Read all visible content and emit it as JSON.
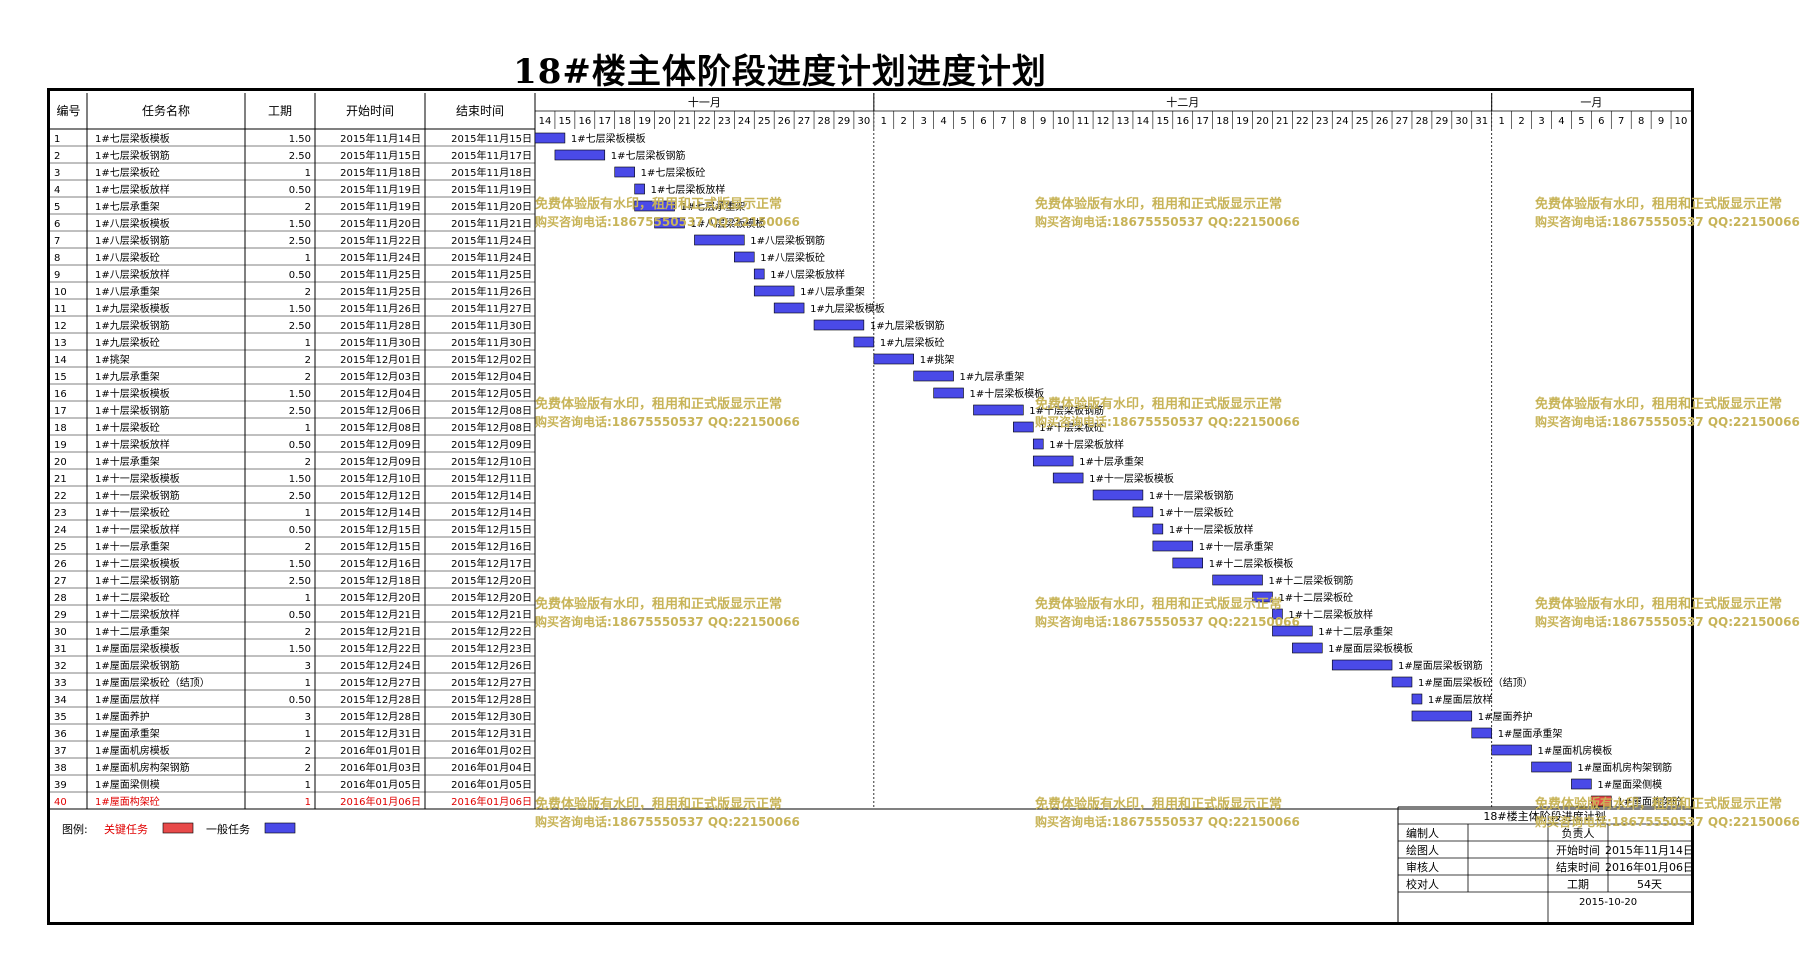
{
  "title": "18#楼主体阶段进度计划进度计划",
  "headers": {
    "no": "编号",
    "name": "任务名称",
    "dur": "工期",
    "start": "开始时间",
    "end": "结束时间"
  },
  "months": [
    {
      "label": "十一月",
      "days": [
        "14",
        "15",
        "16",
        "17",
        "18",
        "19",
        "20",
        "21",
        "22",
        "23",
        "24",
        "25",
        "26",
        "27",
        "28",
        "29",
        "30"
      ]
    },
    {
      "label": "十二月",
      "days": [
        "1",
        "2",
        "3",
        "4",
        "5",
        "6",
        "7",
        "8",
        "9",
        "10",
        "11",
        "12",
        "13",
        "14",
        "15",
        "16",
        "17",
        "18",
        "19",
        "20",
        "21",
        "22",
        "23",
        "24",
        "25",
        "26",
        "27",
        "28",
        "29",
        "30",
        "31"
      ]
    },
    {
      "label": "一月",
      "days": [
        "1",
        "2",
        "3",
        "4",
        "5",
        "6",
        "7",
        "8",
        "9",
        "10"
      ]
    }
  ],
  "legend": {
    "prefix": "图例:",
    "critical": "关键任务",
    "normal": "一般任务"
  },
  "colors": {
    "normal": "#4a4ae8",
    "critical": "#e84a4a",
    "critical_text": "#e00000",
    "watermark": "#c8b458",
    "border": "#000000"
  },
  "watermark": {
    "line1": "免费体验版有水印，租用和正式版显示正常",
    "line2": "购买咨询电话:18675550537 QQ:22150066"
  },
  "info": {
    "title": "18#楼主体阶段进度计划",
    "rows": [
      {
        "label": "编制人",
        "value": "",
        "label2": "负责人",
        "value2": ""
      },
      {
        "label": "绘图人",
        "value": "",
        "label2": "开始时间",
        "value2": "2015年11月14日"
      },
      {
        "label": "审核人",
        "value": "",
        "label2": "结束时间",
        "value2": "2016年01月06日"
      },
      {
        "label": "校对人",
        "value": "",
        "label2": "工期",
        "value2": "54天"
      }
    ],
    "date": "2015-10-20"
  },
  "chart_data": {
    "type": "gantt",
    "axis_start": "2015-11-14",
    "axis_end": "2016-01-10",
    "tasks": [
      {
        "no": "1",
        "name": "1#七层梁板模板",
        "dur": "1.50",
        "start": "2015年11月14日",
        "end": "2015年11月15日",
        "s": "2015-11-14",
        "d": 1.5,
        "critical": false
      },
      {
        "no": "2",
        "name": "1#七层梁板钢筋",
        "dur": "2.50",
        "start": "2015年11月15日",
        "end": "2015年11月17日",
        "s": "2015-11-15",
        "d": 2.5,
        "critical": false
      },
      {
        "no": "3",
        "name": "1#七层梁板砼",
        "dur": "1",
        "start": "2015年11月18日",
        "end": "2015年11月18日",
        "s": "2015-11-18",
        "d": 1,
        "critical": false
      },
      {
        "no": "4",
        "name": "1#七层梁板放样",
        "dur": "0.50",
        "start": "2015年11月19日",
        "end": "2015年11月19日",
        "s": "2015-11-19",
        "d": 0.5,
        "critical": false
      },
      {
        "no": "5",
        "name": "1#七层承重架",
        "dur": "2",
        "start": "2015年11月19日",
        "end": "2015年11月20日",
        "s": "2015-11-19",
        "d": 2,
        "critical": false
      },
      {
        "no": "6",
        "name": "1#八层梁板模板",
        "dur": "1.50",
        "start": "2015年11月20日",
        "end": "2015年11月21日",
        "s": "2015-11-20",
        "d": 1.5,
        "critical": false
      },
      {
        "no": "7",
        "name": "1#八层梁板钢筋",
        "dur": "2.50",
        "start": "2015年11月22日",
        "end": "2015年11月24日",
        "s": "2015-11-22",
        "d": 2.5,
        "critical": false
      },
      {
        "no": "8",
        "name": "1#八层梁板砼",
        "dur": "1",
        "start": "2015年11月24日",
        "end": "2015年11月24日",
        "s": "2015-11-24",
        "d": 1,
        "critical": false
      },
      {
        "no": "9",
        "name": "1#八层梁板放样",
        "dur": "0.50",
        "start": "2015年11月25日",
        "end": "2015年11月25日",
        "s": "2015-11-25",
        "d": 0.5,
        "critical": false
      },
      {
        "no": "10",
        "name": "1#八层承重架",
        "dur": "2",
        "start": "2015年11月25日",
        "end": "2015年11月26日",
        "s": "2015-11-25",
        "d": 2,
        "critical": false
      },
      {
        "no": "11",
        "name": "1#九层梁板模板",
        "dur": "1.50",
        "start": "2015年11月26日",
        "end": "2015年11月27日",
        "s": "2015-11-26",
        "d": 1.5,
        "critical": false
      },
      {
        "no": "12",
        "name": "1#九层梁板钢筋",
        "dur": "2.50",
        "start": "2015年11月28日",
        "end": "2015年11月30日",
        "s": "2015-11-28",
        "d": 2.5,
        "critical": false
      },
      {
        "no": "13",
        "name": "1#九层梁板砼",
        "dur": "1",
        "start": "2015年11月30日",
        "end": "2015年11月30日",
        "s": "2015-11-30",
        "d": 1,
        "critical": false
      },
      {
        "no": "14",
        "name": "1#挑架",
        "dur": "2",
        "start": "2015年12月01日",
        "end": "2015年12月02日",
        "s": "2015-12-01",
        "d": 2,
        "critical": false
      },
      {
        "no": "15",
        "name": "1#九层承重架",
        "dur": "2",
        "start": "2015年12月03日",
        "end": "2015年12月04日",
        "s": "2015-12-03",
        "d": 2,
        "critical": false
      },
      {
        "no": "16",
        "name": "1#十层梁板模板",
        "dur": "1.50",
        "start": "2015年12月04日",
        "end": "2015年12月05日",
        "s": "2015-12-04",
        "d": 1.5,
        "critical": false
      },
      {
        "no": "17",
        "name": "1#十层梁板钢筋",
        "dur": "2.50",
        "start": "2015年12月06日",
        "end": "2015年12月08日",
        "s": "2015-12-06",
        "d": 2.5,
        "critical": false
      },
      {
        "no": "18",
        "name": "1#十层梁板砼",
        "dur": "1",
        "start": "2015年12月08日",
        "end": "2015年12月08日",
        "s": "2015-12-08",
        "d": 1,
        "critical": false
      },
      {
        "no": "19",
        "name": "1#十层梁板放样",
        "dur": "0.50",
        "start": "2015年12月09日",
        "end": "2015年12月09日",
        "s": "2015-12-09",
        "d": 0.5,
        "critical": false
      },
      {
        "no": "20",
        "name": "1#十层承重架",
        "dur": "2",
        "start": "2015年12月09日",
        "end": "2015年12月10日",
        "s": "2015-12-09",
        "d": 2,
        "critical": false
      },
      {
        "no": "21",
        "name": "1#十一层梁板模板",
        "dur": "1.50",
        "start": "2015年12月10日",
        "end": "2015年12月11日",
        "s": "2015-12-10",
        "d": 1.5,
        "critical": false
      },
      {
        "no": "22",
        "name": "1#十一层梁板钢筋",
        "dur": "2.50",
        "start": "2015年12月12日",
        "end": "2015年12月14日",
        "s": "2015-12-12",
        "d": 2.5,
        "critical": false
      },
      {
        "no": "23",
        "name": "1#十一层梁板砼",
        "dur": "1",
        "start": "2015年12月14日",
        "end": "2015年12月14日",
        "s": "2015-12-14",
        "d": 1,
        "critical": false
      },
      {
        "no": "24",
        "name": "1#十一层梁板放样",
        "dur": "0.50",
        "start": "2015年12月15日",
        "end": "2015年12月15日",
        "s": "2015-12-15",
        "d": 0.5,
        "critical": false
      },
      {
        "no": "25",
        "name": "1#十一层承重架",
        "dur": "2",
        "start": "2015年12月15日",
        "end": "2015年12月16日",
        "s": "2015-12-15",
        "d": 2,
        "critical": false
      },
      {
        "no": "26",
        "name": "1#十二层梁板模板",
        "dur": "1.50",
        "start": "2015年12月16日",
        "end": "2015年12月17日",
        "s": "2015-12-16",
        "d": 1.5,
        "critical": false
      },
      {
        "no": "27",
        "name": "1#十二层梁板钢筋",
        "dur": "2.50",
        "start": "2015年12月18日",
        "end": "2015年12月20日",
        "s": "2015-12-18",
        "d": 2.5,
        "critical": false
      },
      {
        "no": "28",
        "name": "1#十二层梁板砼",
        "dur": "1",
        "start": "2015年12月20日",
        "end": "2015年12月20日",
        "s": "2015-12-20",
        "d": 1,
        "critical": false
      },
      {
        "no": "29",
        "name": "1#十二层梁板放样",
        "dur": "0.50",
        "start": "2015年12月21日",
        "end": "2015年12月21日",
        "s": "2015-12-21",
        "d": 0.5,
        "critical": false
      },
      {
        "no": "30",
        "name": "1#十二层承重架",
        "dur": "2",
        "start": "2015年12月21日",
        "end": "2015年12月22日",
        "s": "2015-12-21",
        "d": 2,
        "critical": false
      },
      {
        "no": "31",
        "name": "1#屋面层梁板模板",
        "dur": "1.50",
        "start": "2015年12月22日",
        "end": "2015年12月23日",
        "s": "2015-12-22",
        "d": 1.5,
        "critical": false
      },
      {
        "no": "32",
        "name": "1#屋面层梁板钢筋",
        "dur": "3",
        "start": "2015年12月24日",
        "end": "2015年12月26日",
        "s": "2015-12-24",
        "d": 3,
        "critical": false
      },
      {
        "no": "33",
        "name": "1#屋面层梁板砼（结顶）",
        "dur": "1",
        "start": "2015年12月27日",
        "end": "2015年12月27日",
        "s": "2015-12-27",
        "d": 1,
        "critical": false
      },
      {
        "no": "34",
        "name": "1#屋面层放样",
        "dur": "0.50",
        "start": "2015年12月28日",
        "end": "2015年12月28日",
        "s": "2015-12-28",
        "d": 0.5,
        "critical": false
      },
      {
        "no": "35",
        "name": "1#屋面养护",
        "dur": "3",
        "start": "2015年12月28日",
        "end": "2015年12月30日",
        "s": "2015-12-28",
        "d": 3,
        "critical": false
      },
      {
        "no": "36",
        "name": "1#屋面承重架",
        "dur": "1",
        "start": "2015年12月31日",
        "end": "2015年12月31日",
        "s": "2015-12-31",
        "d": 1,
        "critical": false
      },
      {
        "no": "37",
        "name": "1#屋面机房模板",
        "dur": "2",
        "start": "2016年01月01日",
        "end": "2016年01月02日",
        "s": "2016-01-01",
        "d": 2,
        "critical": false
      },
      {
        "no": "38",
        "name": "1#屋面机房构架钢筋",
        "dur": "2",
        "start": "2016年01月03日",
        "end": "2016年01月04日",
        "s": "2016-01-03",
        "d": 2,
        "critical": false
      },
      {
        "no": "39",
        "name": "1#屋面梁侧模",
        "dur": "1",
        "start": "2016年01月05日",
        "end": "2016年01月05日",
        "s": "2016-01-05",
        "d": 1,
        "critical": false
      },
      {
        "no": "40",
        "name": "1#屋面构架砼",
        "dur": "1",
        "start": "2016年01月06日",
        "end": "2016年01月06日",
        "s": "2016-01-06",
        "d": 1,
        "critical": true
      }
    ]
  }
}
